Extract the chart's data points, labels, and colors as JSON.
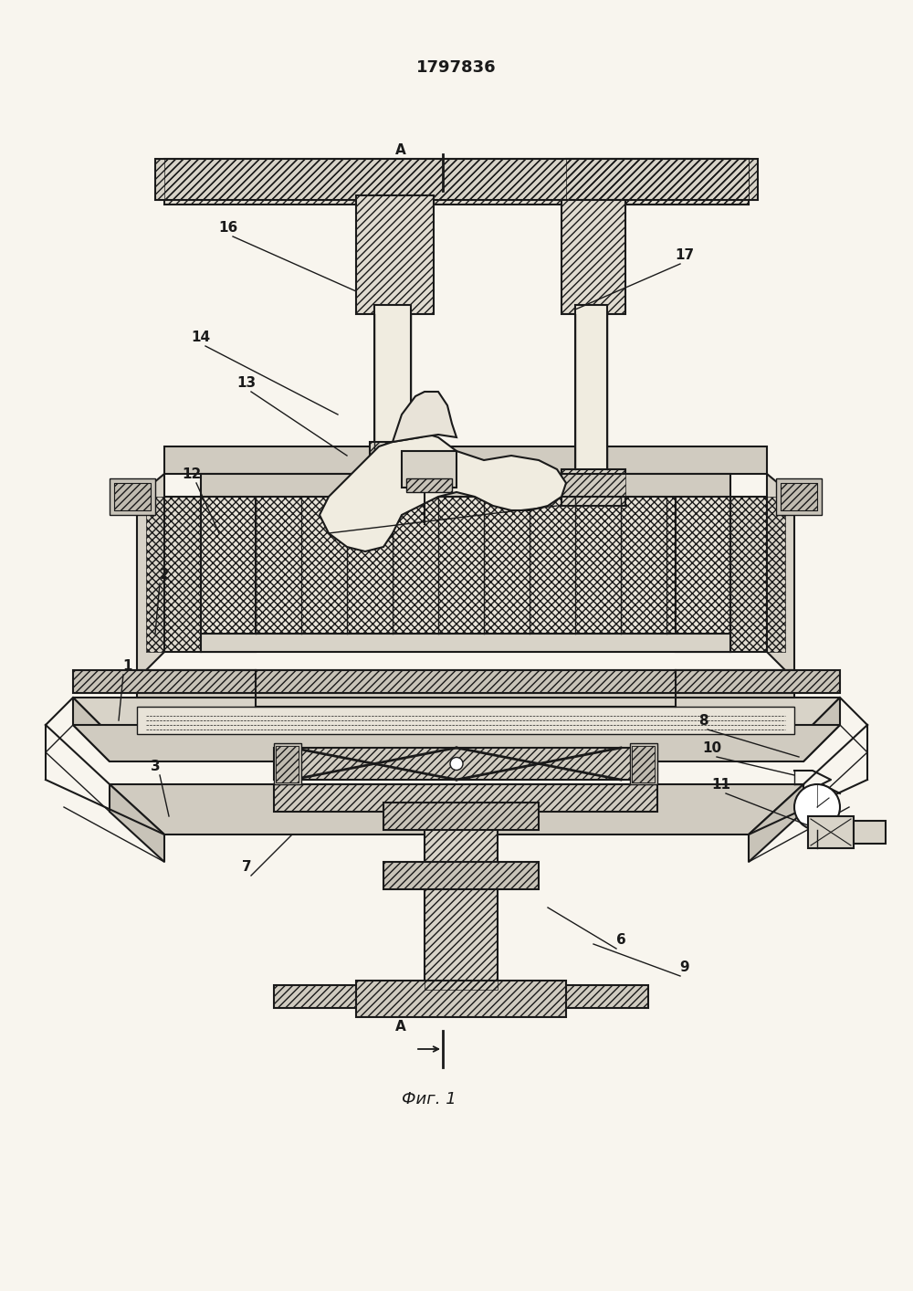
{
  "title": "1797836",
  "bg_color": "#f8f5ee",
  "line_color": "#1a1a1a",
  "fig_caption": "Фиг. 1"
}
